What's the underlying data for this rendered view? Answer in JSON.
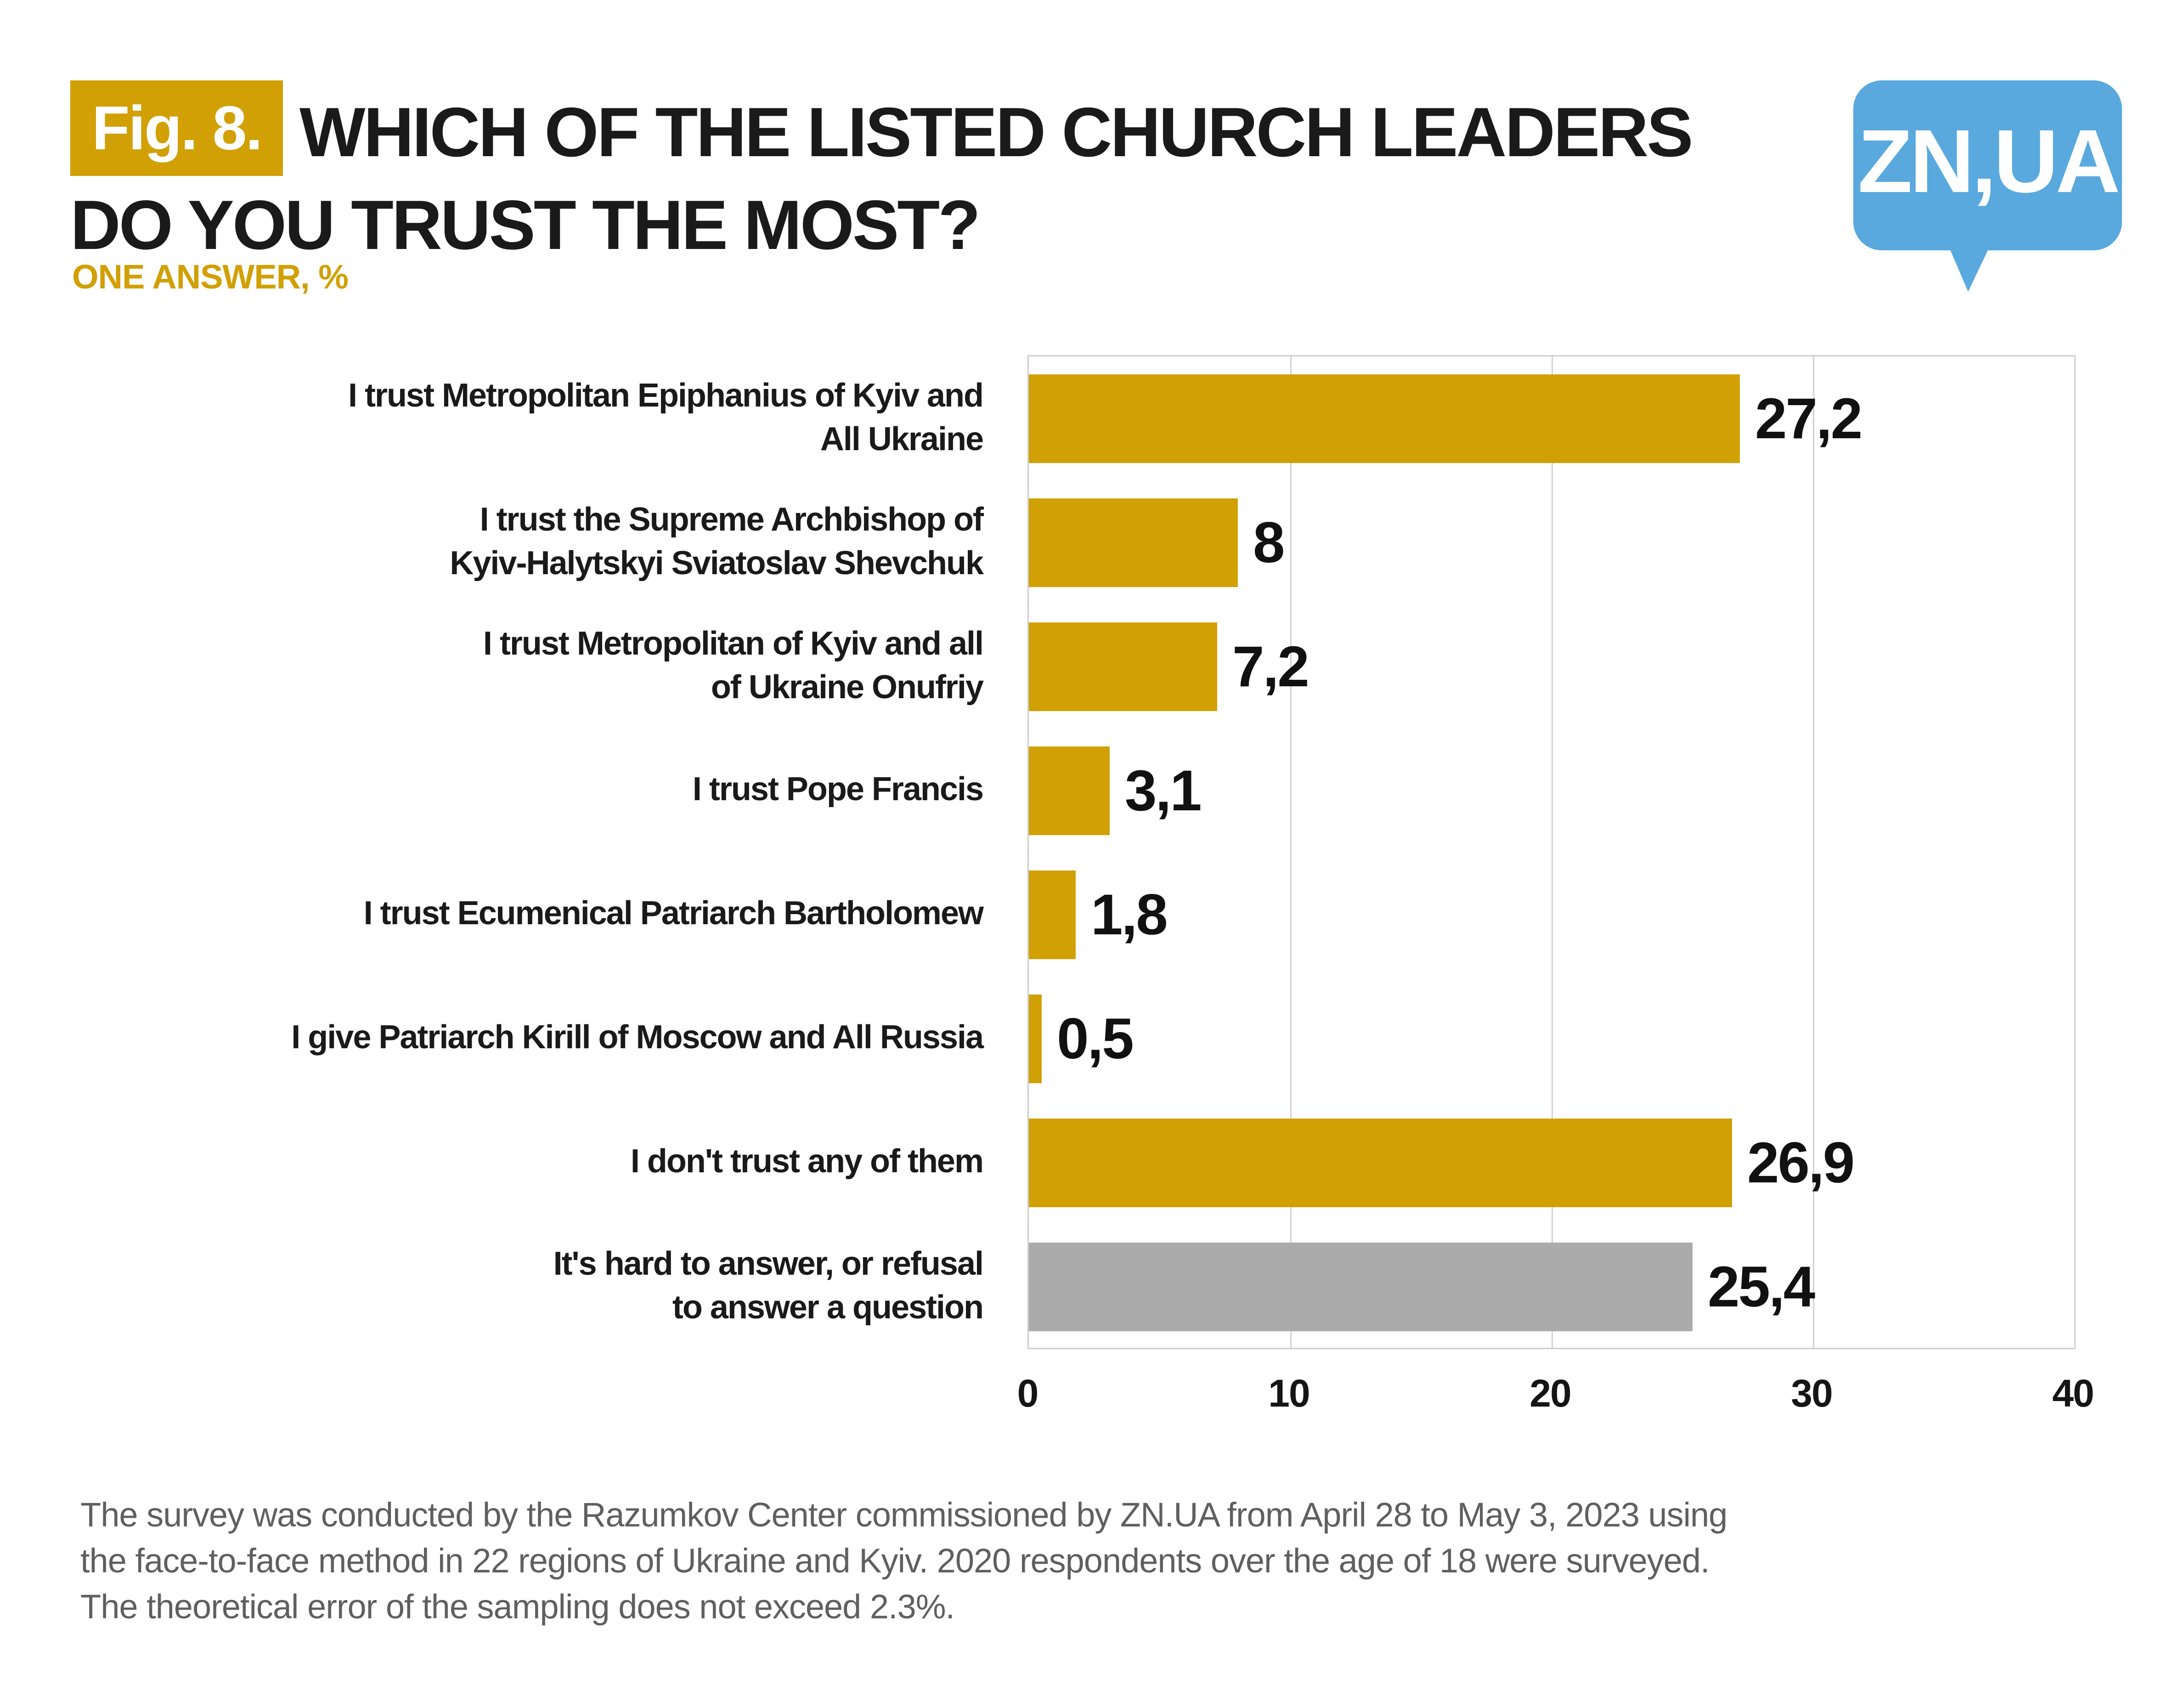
{
  "header": {
    "badge": "Fig. 8.",
    "title_line1": "WHICH OF THE LISTED CHURCH LEADERS",
    "title_line2": "DO YOU TRUST THE MOST?",
    "subtitle": "ONE ANSWER, %"
  },
  "logo": {
    "text": "ZN,UA"
  },
  "colors": {
    "accent_gold": "#D1A005",
    "bar_gray": "#ABABAB",
    "logo_blue": "#59A9DE",
    "logo_text": "#FFFFFF",
    "title_text": "#1A1A1A",
    "footer_text": "#5F5F5F",
    "gridline": "#D2D2D2"
  },
  "chart_data": {
    "type": "bar",
    "orientation": "horizontal",
    "title": "Fig. 8. Which of the listed church leaders do you trust the most? One answer, %",
    "xlabel": "",
    "ylabel": "",
    "xlim": [
      0,
      40
    ],
    "x_ticks": [
      0,
      10,
      20,
      30,
      40
    ],
    "grid": true,
    "legend": "none",
    "categories": [
      "I trust Metropolitan Epiphanius of Kyiv and All Ukraine",
      "I trust the Supreme Archbishop of Kyiv-Halytskyi Sviatoslav Shevchuk",
      "I trust Metropolitan of Kyiv and all of Ukraine Onufriy",
      "I trust Pope Francis",
      "I trust Ecumenical Patriarch Bartholomew",
      "I give Patriarch Kirill of Moscow and All Russia",
      "I don't trust any of them",
      "It's hard to answer, or refusal to answer a question"
    ],
    "values": [
      27.2,
      8,
      7.2,
      3.1,
      1.8,
      0.5,
      26.9,
      25.4
    ],
    "rows": [
      {
        "label_lines": [
          "I trust Metropolitan Epiphanius of Kyiv and",
          "All Ukraine"
        ],
        "value": 27.2,
        "value_label": "27,2",
        "color_key": "accent_gold"
      },
      {
        "label_lines": [
          "I trust the Supreme Archbishop of",
          "Kyiv-Halytskyi Sviatoslav Shevchuk"
        ],
        "value": 8,
        "value_label": "8",
        "color_key": "accent_gold"
      },
      {
        "label_lines": [
          "I trust Metropolitan of Kyiv and all",
          "of Ukraine Onufriy"
        ],
        "value": 7.2,
        "value_label": "7,2",
        "color_key": "accent_gold"
      },
      {
        "label_lines": [
          "I trust Pope Francis"
        ],
        "value": 3.1,
        "value_label": "3,1",
        "color_key": "accent_gold"
      },
      {
        "label_lines": [
          "I trust Ecumenical Patriarch Bartholomew"
        ],
        "value": 1.8,
        "value_label": "1,8",
        "color_key": "accent_gold"
      },
      {
        "label_lines": [
          "I give Patriarch Kirill of Moscow and All Russia"
        ],
        "value": 0.5,
        "value_label": "0,5",
        "color_key": "accent_gold"
      },
      {
        "label_lines": [
          "I don't trust any of them"
        ],
        "value": 26.9,
        "value_label": "26,9",
        "color_key": "accent_gold"
      },
      {
        "label_lines": [
          "It's hard to answer, or refusal",
          "to answer a question"
        ],
        "value": 25.4,
        "value_label": "25,4",
        "color_key": "bar_gray"
      }
    ]
  },
  "footer": {
    "lines": [
      "The survey was conducted by the Razumkov Center commissioned by ZN.UA from April 28 to May 3, 2023 using",
      "the face-to-face method in 22 regions of Ukraine and Kyiv. 2020 respondents over the age of 18 were surveyed.",
      "The theoretical error of the sampling does not exceed 2.3%."
    ]
  }
}
